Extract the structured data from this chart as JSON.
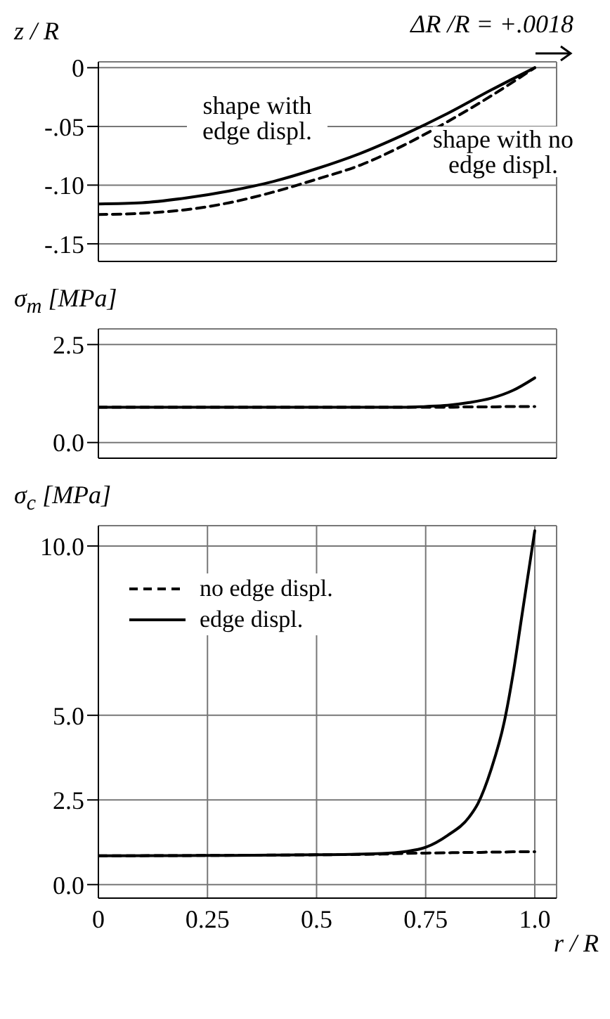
{
  "chart_data": [
    {
      "type": "line",
      "ylabel": "z / R",
      "x": [
        0,
        0.1,
        0.2,
        0.3,
        0.4,
        0.5,
        0.6,
        0.7,
        0.8,
        0.9,
        1.0
      ],
      "xlim": [
        0,
        1.05
      ],
      "xticks": [
        0,
        0.25,
        0.5,
        0.75,
        1.0
      ],
      "ylim": [
        -0.165,
        0.005
      ],
      "yticks": [
        {
          "value": 0,
          "label": "0"
        },
        {
          "value": -0.05,
          "label": "-.05"
        },
        {
          "value": -0.1,
          "label": "-.10"
        },
        {
          "value": -0.15,
          "label": "-.15"
        }
      ],
      "grid": true,
      "tick_labels": "y",
      "annotations": [
        "ΔR /R = +.0018",
        "shape with edge displ.",
        "shape with no edge displ."
      ],
      "series": [
        {
          "color": "#000000",
          "line_style": "solid",
          "values": [
            -0.116,
            -0.115,
            -0.111,
            -0.105,
            -0.097,
            -0.086,
            -0.073,
            -0.057,
            -0.039,
            -0.019,
            0
          ]
        },
        {
          "color": "#000000",
          "line_style": "dashed",
          "values": [
            -0.125,
            -0.124,
            -0.121,
            -0.115,
            -0.106,
            -0.095,
            -0.083,
            -0.066,
            -0.046,
            -0.024,
            0
          ]
        }
      ]
    },
    {
      "type": "line",
      "ylabel": "σ$_{m}$ [MPa]",
      "x": [
        0,
        0.25,
        0.5,
        0.7,
        0.75,
        0.8,
        0.85,
        0.9,
        0.95,
        1.0
      ],
      "xlim": [
        0,
        1.05
      ],
      "xticks": [
        0,
        0.25,
        0.5,
        0.75,
        1.0
      ],
      "ylim": [
        -0.4,
        2.9
      ],
      "yticks": [
        {
          "value": 0,
          "label": "0.0"
        },
        2.5
      ],
      "grid": true,
      "tick_labels": "y",
      "series": [
        {
          "color": "#000000",
          "line_style": "solid",
          "values": [
            0.9,
            0.9,
            0.9,
            0.9,
            0.92,
            0.95,
            1.02,
            1.13,
            1.33,
            1.65
          ]
        },
        {
          "color": "#000000",
          "line_style": "dashed",
          "values": [
            0.9,
            0.9,
            0.9,
            0.9,
            0.9,
            0.9,
            0.91,
            0.91,
            0.92,
            0.92
          ]
        }
      ]
    },
    {
      "type": "line",
      "ylabel": "σ$_{c}$  [MPa]",
      "xlabel": "r / R",
      "x": [
        0,
        0.25,
        0.5,
        0.65,
        0.7,
        0.75,
        0.8,
        0.85,
        0.87,
        0.9,
        0.93,
        0.95,
        0.97,
        0.99,
        1.0
      ],
      "xlim": [
        0,
        1.05
      ],
      "xticks": [
        0,
        0.25,
        0.5,
        0.75,
        {
          "value": 1,
          "label": "1.0"
        }
      ],
      "ylim": [
        -0.4,
        10.6
      ],
      "yticks": [
        {
          "value": 0,
          "label": "0.0"
        },
        2.5,
        {
          "value": 5,
          "label": "5.0"
        },
        {
          "value": 10,
          "label": "10.0"
        }
      ],
      "grid": true,
      "legend": "top left",
      "series": [
        {
          "name": "no edge displ.",
          "color": "#000000",
          "line_style": "dashed",
          "values": [
            0.85,
            0.86,
            0.88,
            0.9,
            0.92,
            0.93,
            0.94,
            0.95,
            0.95,
            0.96,
            0.96,
            0.97,
            0.97,
            0.97,
            0.97
          ]
        },
        {
          "name": "edge displ.",
          "color": "#000000",
          "line_style": "solid",
          "values": [
            0.85,
            0.86,
            0.88,
            0.92,
            0.97,
            1.1,
            1.45,
            2.0,
            2.4,
            3.4,
            4.8,
            6.2,
            7.9,
            9.6,
            10.45
          ]
        }
      ]
    }
  ]
}
